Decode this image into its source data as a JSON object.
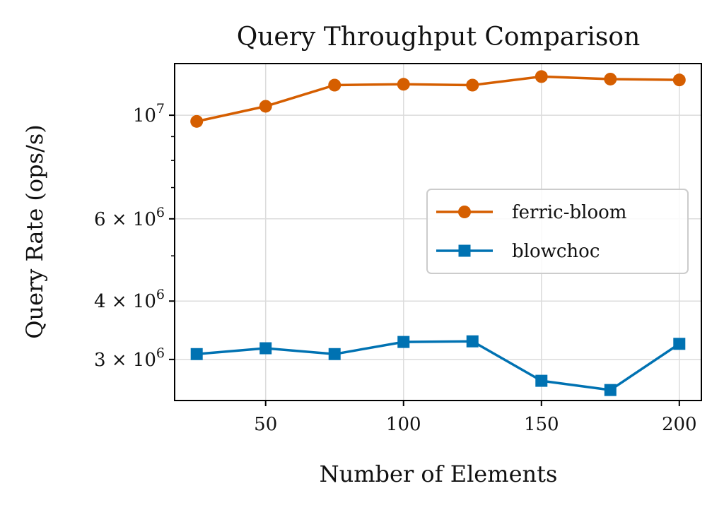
{
  "chart_data": {
    "type": "line",
    "title": "Query Throughput Comparison",
    "xlabel": "Number of Elements",
    "ylabel": "Query Rate (ops/s)",
    "yscale": "log",
    "xlim": [
      17,
      208
    ],
    "ylim": [
      2450000,
      12900000
    ],
    "x": [
      25,
      50,
      75,
      100,
      125,
      150,
      175,
      200
    ],
    "x_ticks": [
      {
        "value": 50,
        "label": "50"
      },
      {
        "value": 100,
        "label": "100"
      },
      {
        "value": 150,
        "label": "150"
      },
      {
        "value": 200,
        "label": "200"
      }
    ],
    "y_ticks": [
      {
        "value": 3000000,
        "label_base": "3 × 10",
        "label_exp": "6"
      },
      {
        "value": 4000000,
        "label_base": "4 × 10",
        "label_exp": "6"
      },
      {
        "value": 6000000,
        "label_base": "6 × 10",
        "label_exp": "6"
      },
      {
        "value": 10000000,
        "label_base": "10",
        "label_exp": "7"
      }
    ],
    "y_minor_ticks": [
      5000000,
      7000000,
      8000000,
      9000000
    ],
    "grid": true,
    "legend_position": "center-right",
    "series": [
      {
        "name": "ferric-bloom",
        "color": "#d55e00",
        "marker": "circle",
        "values": [
          9700000,
          10450000,
          11600000,
          11650000,
          11600000,
          12100000,
          11950000,
          11900000
        ]
      },
      {
        "name": "blowchoc",
        "color": "#0072b2",
        "marker": "square",
        "values": [
          3080000,
          3170000,
          3080000,
          3270000,
          3280000,
          2700000,
          2580000,
          3240000
        ]
      }
    ]
  }
}
